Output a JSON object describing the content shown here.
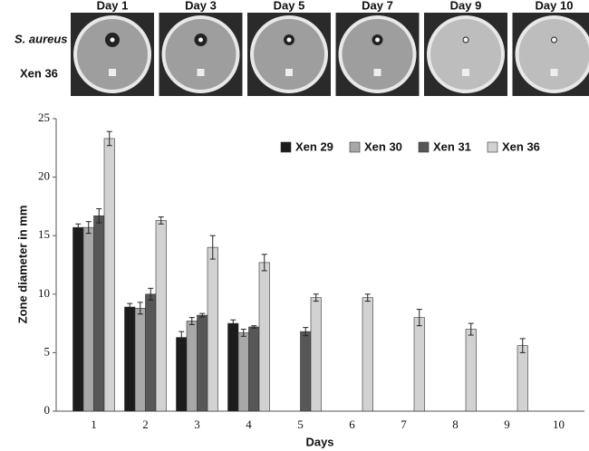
{
  "photo_strip": {
    "day_labels": [
      "Day 1",
      "Day 3",
      "Day 5",
      "Day 7",
      "Day 9",
      "Day 10"
    ],
    "row_labels": [
      "S. aureus",
      "Xen 36"
    ]
  },
  "chart_data": {
    "type": "bar",
    "x_label": "Days",
    "y_label": "Zone diameter in mm",
    "categories": [
      "1",
      "2",
      "3",
      "4",
      "5",
      "6",
      "7",
      "8",
      "9",
      "10"
    ],
    "series": [
      {
        "name": "Xen 29",
        "color": "#1c1c1c",
        "values": [
          15.7,
          8.9,
          6.3,
          7.5,
          null,
          null,
          null,
          null,
          null,
          null
        ],
        "errors": [
          0.3,
          0.3,
          0.5,
          0.3,
          null,
          null,
          null,
          null,
          null,
          null
        ]
      },
      {
        "name": "Xen 30",
        "color": "#a8a8a8",
        "values": [
          15.7,
          8.8,
          7.7,
          6.7,
          null,
          null,
          null,
          null,
          null,
          null
        ],
        "errors": [
          0.5,
          0.5,
          0.3,
          0.3,
          null,
          null,
          null,
          null,
          null,
          null
        ]
      },
      {
        "name": "Xen 31",
        "color": "#575757",
        "values": [
          16.7,
          10.0,
          8.2,
          7.2,
          6.8,
          null,
          null,
          null,
          null,
          null
        ],
        "errors": [
          0.6,
          0.5,
          0.15,
          0.1,
          0.35,
          null,
          null,
          null,
          null,
          null
        ]
      },
      {
        "name": "Xen 36",
        "color": "#d2d2d2",
        "values": [
          23.3,
          16.3,
          14.0,
          12.7,
          9.7,
          9.7,
          8.0,
          7.0,
          5.6,
          null
        ],
        "errors": [
          0.6,
          0.3,
          1.0,
          0.7,
          0.3,
          0.3,
          0.7,
          0.5,
          0.6,
          null
        ]
      }
    ],
    "ylim": [
      0,
      25
    ],
    "yticks": [
      0,
      5,
      10,
      15,
      20,
      25
    ],
    "grid": false,
    "legend": "upper right"
  }
}
